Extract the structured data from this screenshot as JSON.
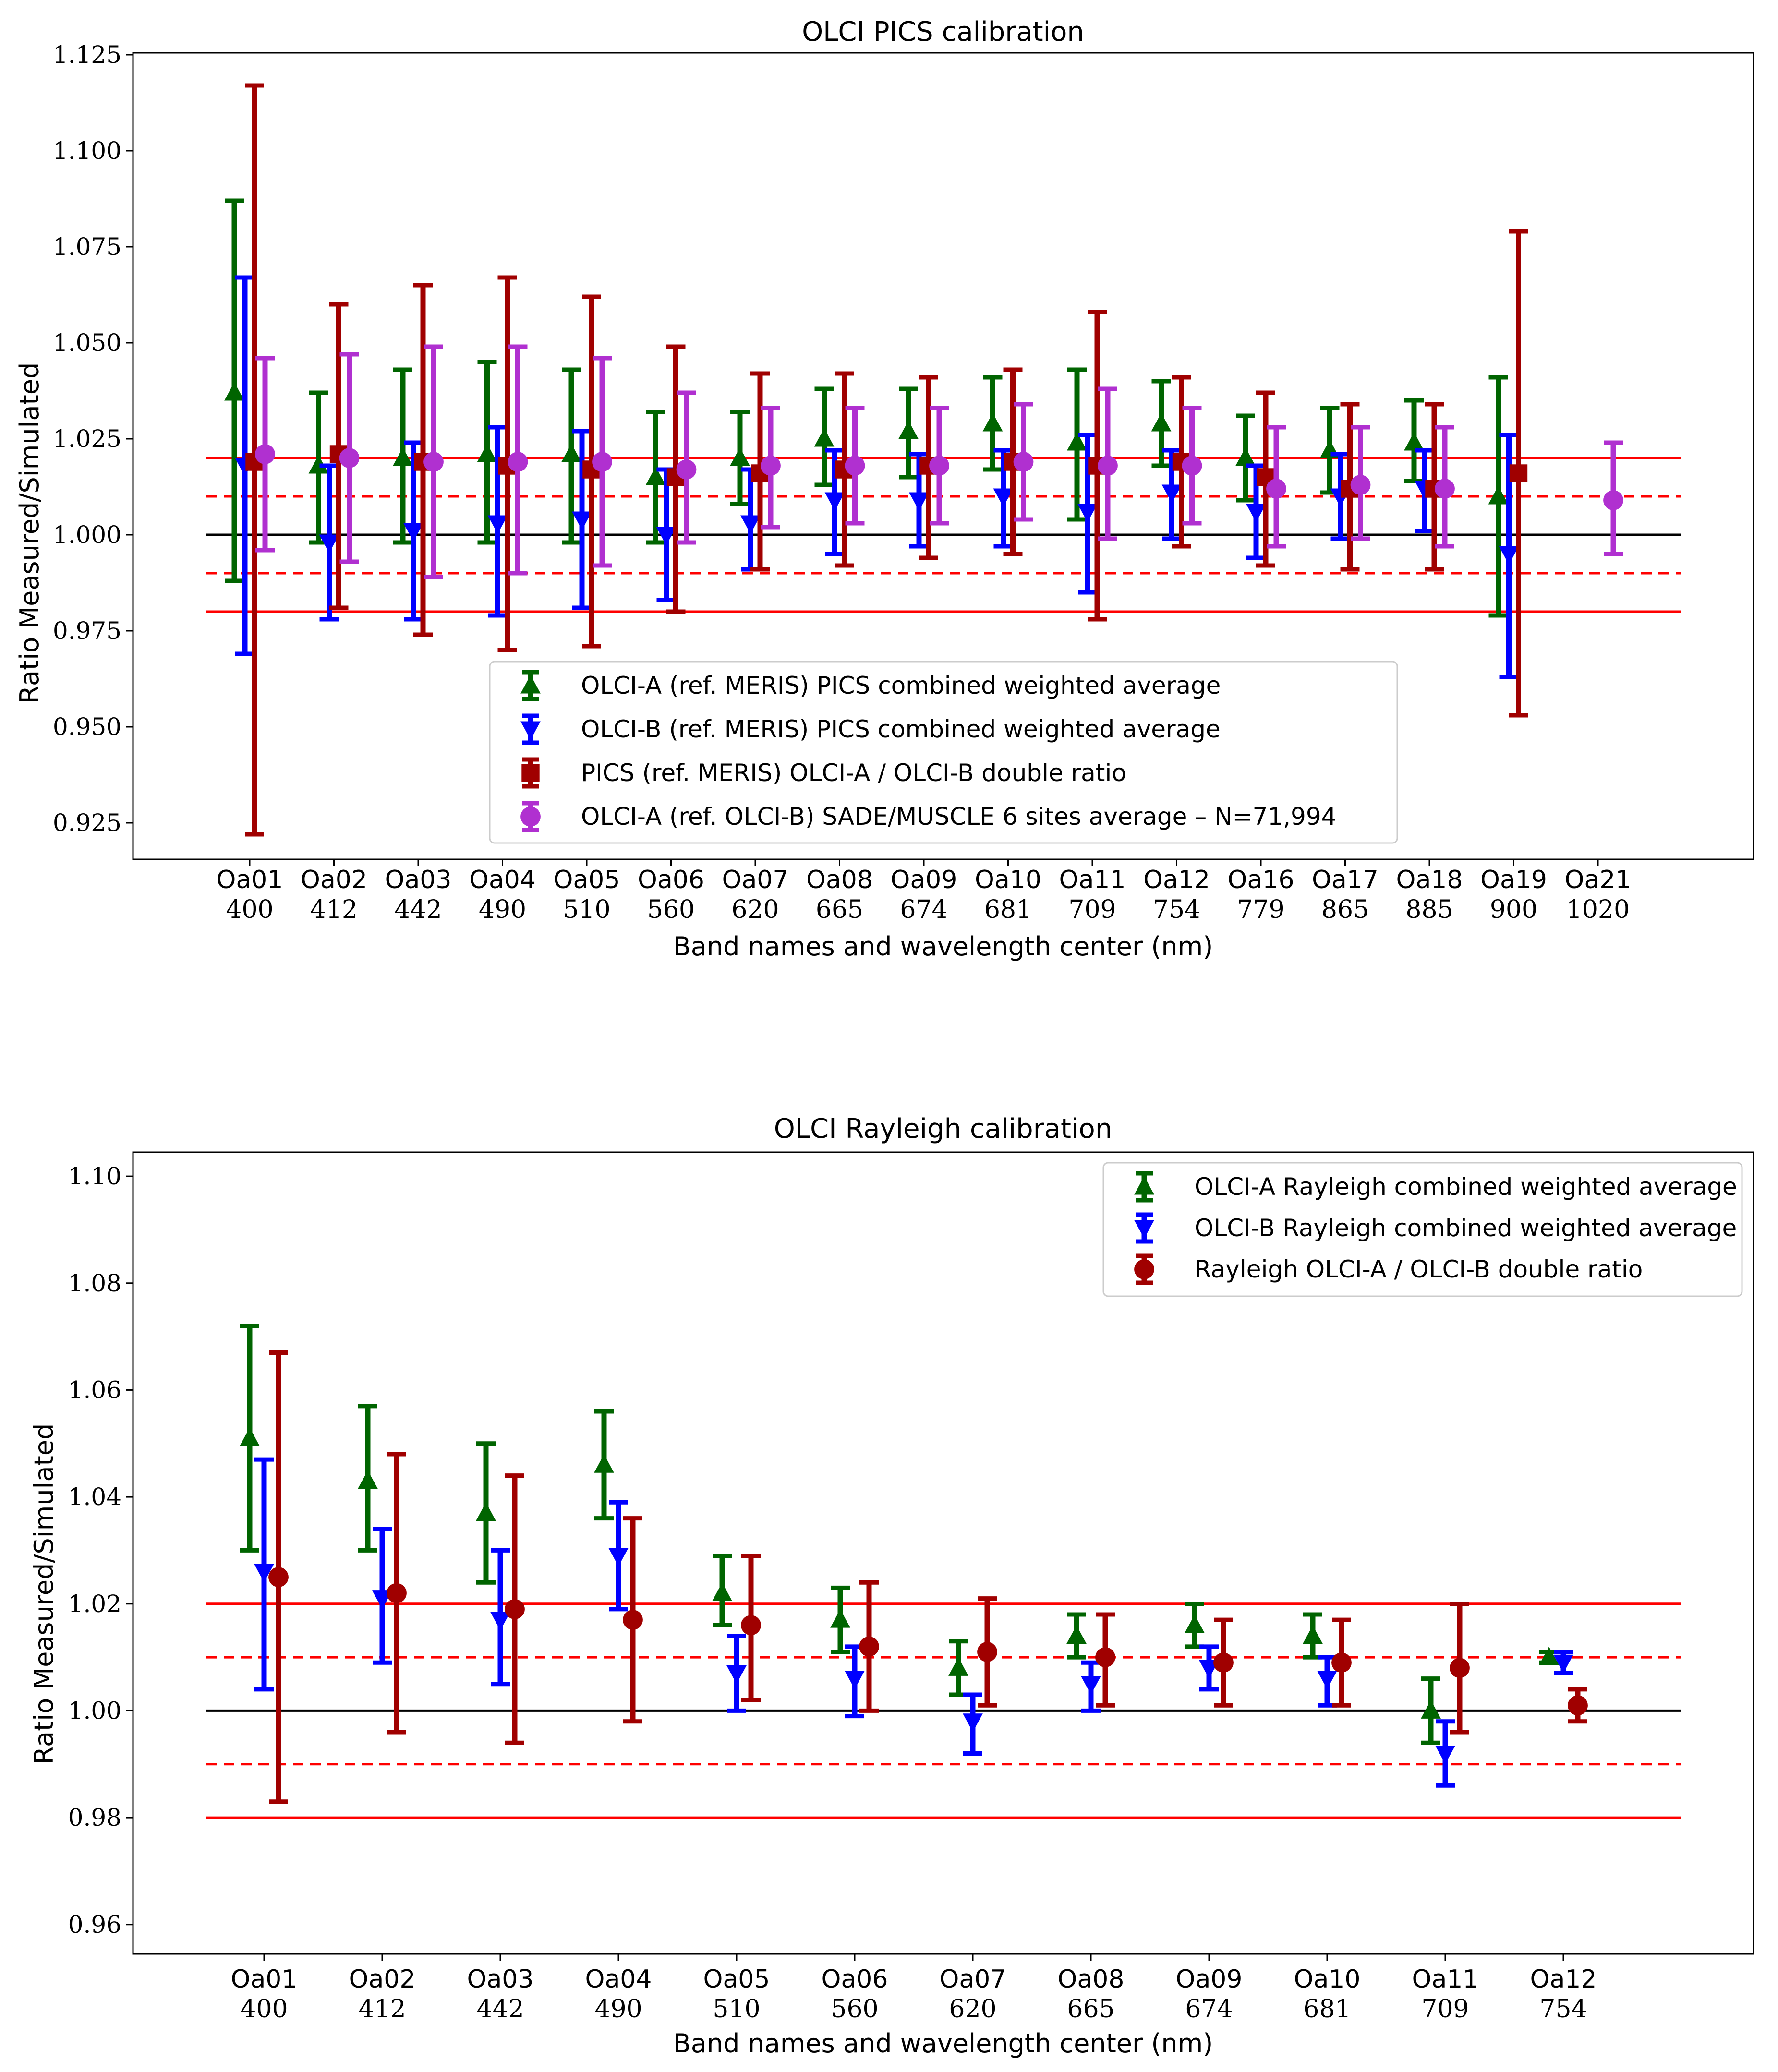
{
  "chart_data": [
    {
      "type": "scatter",
      "title": "OLCI PICS calibration",
      "xlabel": "Band names and wavelength center (nm)",
      "ylabel": "Ratio Measured/Simulated",
      "ylim": [
        0.9155,
        1.1255
      ],
      "yticks": [
        0.925,
        0.95,
        0.975,
        1.0,
        1.025,
        1.05,
        1.075,
        1.1,
        1.125
      ],
      "ytick_labels": [
        "0.925",
        "0.950",
        "0.975",
        "1.000",
        "1.025",
        "1.050",
        "1.075",
        "1.100",
        "1.125"
      ],
      "categories": [
        "Oa01",
        "Oa02",
        "Oa03",
        "Oa04",
        "Oa05",
        "Oa06",
        "Oa07",
        "Oa08",
        "Oa09",
        "Oa10",
        "Oa11",
        "Oa12",
        "Oa16",
        "Oa17",
        "Oa18",
        "Oa19",
        "Oa21"
      ],
      "wavelengths": [
        "400",
        "412",
        "442",
        "490",
        "510",
        "560",
        "620",
        "665",
        "674",
        "681",
        "709",
        "754",
        "779",
        "865",
        "885",
        "900",
        "1020"
      ],
      "reference_lines": [
        {
          "y": 1.0,
          "color": "#000000",
          "style": "solid"
        },
        {
          "y": 1.02,
          "color": "#ff0000",
          "style": "solid"
        },
        {
          "y": 0.98,
          "color": "#ff0000",
          "style": "solid"
        },
        {
          "y": 1.01,
          "color": "#ff0000",
          "style": "dashed"
        },
        {
          "y": 0.99,
          "color": "#ff0000",
          "style": "dashed"
        }
      ],
      "legend_placement": "lower-center",
      "series": [
        {
          "name": "OLCI-A (ref. MERIS) PICS combined weighted average",
          "color": "#006400",
          "marker": "triangle-up",
          "values": [
            1.037,
            1.018,
            1.02,
            1.021,
            1.021,
            1.015,
            1.02,
            1.025,
            1.027,
            1.029,
            1.024,
            1.029,
            1.02,
            1.022,
            1.024,
            1.01,
            null
          ],
          "error_low": [
            0.988,
            0.998,
            0.998,
            0.998,
            0.998,
            0.998,
            1.008,
            1.013,
            1.015,
            1.017,
            1.004,
            1.018,
            1.009,
            1.011,
            1.014,
            0.979,
            null
          ],
          "error_high": [
            1.087,
            1.037,
            1.043,
            1.045,
            1.043,
            1.032,
            1.032,
            1.038,
            1.038,
            1.041,
            1.043,
            1.04,
            1.031,
            1.033,
            1.035,
            1.041,
            null
          ]
        },
        {
          "name": "OLCI-B (ref. MERIS) PICS combined weighted average",
          "color": "#0000ff",
          "marker": "triangle-down",
          "values": [
            1.018,
            0.998,
            1.001,
            1.003,
            1.004,
            1.0,
            1.003,
            1.009,
            1.009,
            1.01,
            1.006,
            1.011,
            1.006,
            1.01,
            1.012,
            0.995,
            null
          ],
          "error_low": [
            0.969,
            0.978,
            0.978,
            0.979,
            0.981,
            0.983,
            0.991,
            0.995,
            0.997,
            0.997,
            0.985,
            0.999,
            0.994,
            0.999,
            1.001,
            0.963,
            null
          ],
          "error_high": [
            1.067,
            1.018,
            1.024,
            1.028,
            1.027,
            1.017,
            1.017,
            1.022,
            1.021,
            1.022,
            1.026,
            1.022,
            1.018,
            1.021,
            1.022,
            1.026,
            null
          ]
        },
        {
          "name": "PICS (ref. MERIS) OLCI-A / OLCI-B double ratio",
          "color": "#a00000",
          "marker": "square",
          "values": [
            1.019,
            1.021,
            1.019,
            1.018,
            1.017,
            1.015,
            1.016,
            1.017,
            1.018,
            1.019,
            1.018,
            1.019,
            1.015,
            1.012,
            1.012,
            1.016,
            null
          ],
          "error_low": [
            0.922,
            0.981,
            0.974,
            0.97,
            0.971,
            0.98,
            0.991,
            0.992,
            0.994,
            0.995,
            0.978,
            0.997,
            0.992,
            0.991,
            0.991,
            0.953,
            null
          ],
          "error_high": [
            1.117,
            1.06,
            1.065,
            1.067,
            1.062,
            1.049,
            1.042,
            1.042,
            1.041,
            1.043,
            1.058,
            1.041,
            1.037,
            1.034,
            1.034,
            1.079,
            null
          ]
        },
        {
          "name": "OLCI-A (ref. OLCI-B) SADE/MUSCLE 6 sites average – N=71,994",
          "color": "#b030d0",
          "marker": "circle",
          "values": [
            1.021,
            1.02,
            1.019,
            1.019,
            1.019,
            1.017,
            1.018,
            1.018,
            1.018,
            1.019,
            1.018,
            1.018,
            1.012,
            1.013,
            1.012,
            null,
            1.009
          ],
          "error_low": [
            0.996,
            0.993,
            0.989,
            0.99,
            0.992,
            0.998,
            1.002,
            1.003,
            1.003,
            1.004,
            0.999,
            1.003,
            0.997,
            0.999,
            0.997,
            null,
            0.995
          ],
          "error_high": [
            1.046,
            1.047,
            1.049,
            1.049,
            1.046,
            1.037,
            1.033,
            1.033,
            1.033,
            1.034,
            1.038,
            1.033,
            1.028,
            1.028,
            1.028,
            null,
            1.024
          ]
        }
      ]
    },
    {
      "type": "scatter",
      "title": "OLCI Rayleigh calibration",
      "xlabel": "Band names and wavelength center (nm)",
      "ylabel": "Ratio Measured/Simulated",
      "ylim": [
        0.9545,
        1.1045
      ],
      "yticks": [
        0.96,
        0.98,
        1.0,
        1.02,
        1.04,
        1.06,
        1.08,
        1.1
      ],
      "ytick_labels": [
        "0.96",
        "0.98",
        "1.00",
        "1.02",
        "1.04",
        "1.06",
        "1.08",
        "1.10"
      ],
      "categories": [
        "Oa01",
        "Oa02",
        "Oa03",
        "Oa04",
        "Oa05",
        "Oa06",
        "Oa07",
        "Oa08",
        "Oa09",
        "Oa10",
        "Oa11",
        "Oa12"
      ],
      "wavelengths": [
        "400",
        "412",
        "442",
        "490",
        "510",
        "560",
        "620",
        "665",
        "674",
        "681",
        "709",
        "754"
      ],
      "reference_lines": [
        {
          "y": 1.0,
          "color": "#000000",
          "style": "solid"
        },
        {
          "y": 1.02,
          "color": "#ff0000",
          "style": "solid"
        },
        {
          "y": 0.98,
          "color": "#ff0000",
          "style": "solid"
        },
        {
          "y": 1.01,
          "color": "#ff0000",
          "style": "dashed"
        },
        {
          "y": 0.99,
          "color": "#ff0000",
          "style": "dashed"
        }
      ],
      "legend_placement": "upper-right",
      "series": [
        {
          "name": "OLCI-A Rayleigh combined weighted average",
          "color": "#006400",
          "marker": "triangle-up",
          "values": [
            1.051,
            1.043,
            1.037,
            1.046,
            1.022,
            1.017,
            1.008,
            1.014,
            1.016,
            1.014,
            1.0,
            1.01
          ],
          "error_low": [
            1.03,
            1.03,
            1.024,
            1.036,
            1.016,
            1.011,
            1.003,
            1.01,
            1.012,
            1.01,
            0.994,
            1.009
          ],
          "error_high": [
            1.072,
            1.057,
            1.05,
            1.056,
            1.029,
            1.023,
            1.013,
            1.018,
            1.02,
            1.018,
            1.006,
            1.011
          ]
        },
        {
          "name": "OLCI-B Rayleigh combined weighted average",
          "color": "#0000ff",
          "marker": "triangle-down",
          "values": [
            1.026,
            1.021,
            1.017,
            1.029,
            1.007,
            1.006,
            0.998,
            1.005,
            1.008,
            1.006,
            0.992,
            1.009
          ],
          "error_low": [
            1.004,
            1.009,
            1.005,
            1.019,
            1.0,
            0.999,
            0.992,
            1.0,
            1.004,
            1.001,
            0.986,
            1.007
          ],
          "error_high": [
            1.047,
            1.034,
            1.03,
            1.039,
            1.014,
            1.012,
            1.003,
            1.009,
            1.012,
            1.01,
            0.998,
            1.011
          ]
        },
        {
          "name": "Rayleigh OLCI-A / OLCI-B double ratio",
          "color": "#a00000",
          "marker": "circle",
          "values": [
            1.025,
            1.022,
            1.019,
            1.017,
            1.016,
            1.012,
            1.011,
            1.01,
            1.009,
            1.009,
            1.008,
            1.001
          ],
          "error_low": [
            0.983,
            0.996,
            0.994,
            0.998,
            1.002,
            1.0,
            1.001,
            1.001,
            1.001,
            1.001,
            0.996,
            0.998
          ],
          "error_high": [
            1.067,
            1.048,
            1.044,
            1.036,
            1.029,
            1.024,
            1.021,
            1.018,
            1.017,
            1.017,
            1.02,
            1.004
          ]
        }
      ]
    }
  ]
}
